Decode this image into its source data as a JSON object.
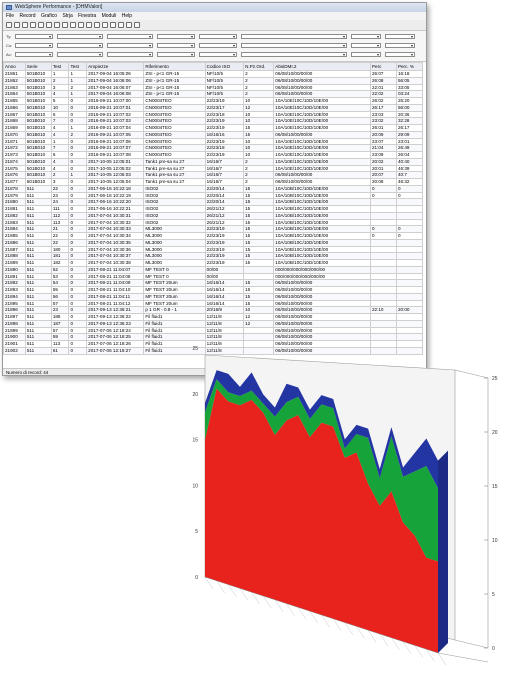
{
  "window": {
    "title": "WebSphere Performance - [DHMValori]",
    "menu": [
      "File",
      "Record",
      "Grafico",
      "Strja",
      "Finestra",
      "Moduli",
      "Help"
    ],
    "toolbar_icons": [
      "new-icon",
      "open-icon",
      "save-icon",
      "print-icon",
      "cut-icon",
      "copy-icon",
      "paste-icon",
      "find-icon",
      "filter-icon",
      "sort-icon",
      "refresh-icon",
      "chart-icon",
      "grid-icon",
      "export-icon",
      "settings-icon",
      "zoom-icon",
      "help-icon"
    ],
    "filter_labels": [
      "Ty:",
      "Co:",
      "Ac:"
    ],
    "status": "Numero di record: 44"
  },
  "table": {
    "columns": [
      "Anno",
      "Serie",
      "Test",
      "Test",
      "Ampiezze",
      "Riferimento",
      "Codice ISO",
      "N.Pz.Ord.",
      "AbsiDMI.2",
      "Perc",
      "Perc. %"
    ],
    "rows": [
      [
        "21861",
        "501B010",
        "1",
        "1",
        "2017-09-04 16:05:06",
        "ZSI - p<1 GR-15",
        "NF/10/5",
        "2",
        "06/08/10/00/00/00",
        "26:07",
        "16:18"
      ],
      [
        "21862",
        "501B010",
        "2",
        "1",
        "2017-09-04 16:06:06",
        "ZSI - p<1 GR-15",
        "NF/10/5",
        "2",
        "06/08/10/00/00/00",
        "26:08",
        "56:05"
      ],
      [
        "21863",
        "501B010",
        "3",
        "2",
        "2017-09-04 16:06:07",
        "ZSI - p<1 GR-15",
        "NF/10/5",
        "2",
        "06/08/10/00/00/00",
        "22:01",
        "33:05"
      ],
      [
        "21864",
        "501B010",
        "4",
        "1",
        "2017-09-04 16:06:08",
        "ZSI - p<1 GR-15",
        "NF/10/5",
        "2",
        "06/08/10/00/00/00",
        "22:02",
        "03:24"
      ],
      [
        "21865",
        "501B010",
        "5",
        "0",
        "2016-09-21 10:07:00",
        "CN0004TEO",
        "22/23/19",
        "10",
        "10A/10E/10C/10D/10E/00",
        "26:02",
        "26:20"
      ],
      [
        "21866",
        "501B010",
        "10",
        "0",
        "2016-09-21 10:07:01",
        "CN0004TEO",
        "22/23/17",
        "12",
        "10A/10E/10C/10D/10E/00",
        "26:17",
        "56:00"
      ],
      [
        "21867",
        "501B010",
        "6",
        "0",
        "2016-09-21 10:07:02",
        "CN0004TEO",
        "22/23/18",
        "10",
        "10A/10E/10C/10D/10E/00",
        "23:03",
        "20:36"
      ],
      [
        "21868",
        "501B010",
        "7",
        "0",
        "2016-09-21 10:07:03",
        "CN0004TEO",
        "22/23/19",
        "10",
        "10A/10E/10C/10D/10E/00",
        "23:02",
        "32:28"
      ],
      [
        "21869",
        "501B010",
        "4",
        "1",
        "2016-09-21 10:07:04",
        "CN0004TEO",
        "22/23/19",
        "15",
        "10A/10E/10C/10D/10E/00",
        "26:01",
        "26:17"
      ],
      [
        "21870",
        "501B010",
        "4",
        "2",
        "2016-09-21 10:07:05",
        "CN0004TEO",
        "16/16/16",
        "15",
        "06/08/10/00/00/00",
        "20:09",
        "29:09"
      ],
      [
        "21871",
        "501B010",
        "1",
        "0",
        "2016-09-21 10:07:06",
        "CN0004TEO",
        "22/23/19",
        "10",
        "10A/10E/10C/10D/10E/00",
        "23:07",
        "23:01"
      ],
      [
        "21872",
        "501B010",
        "7",
        "0",
        "2016-09-21 10:07:07",
        "CN0004TEO",
        "22/23/18",
        "10",
        "10A/10E/10C/10D/10E/00",
        "21:04",
        "26:49"
      ],
      [
        "21873",
        "501B010",
        "6",
        "0",
        "2016-09-21 10:07:08",
        "CN0004TEO",
        "22/23/19",
        "10",
        "10A/10E/10C/10D/10E/00",
        "23:09",
        "26:04"
      ],
      [
        "21874",
        "501B010",
        "4",
        "0",
        "2017-10-05 12:05:01",
        "Tank1 pre-sa su 27",
        "16/16/7",
        "2",
        "10A/10E/10C/10D/10E/00",
        "20:02",
        "40:40"
      ],
      [
        "21875",
        "501B010",
        "4",
        "0",
        "2017-10-05 12:05:02",
        "Tank1 pre-sa su 27",
        "16/16/7",
        "2",
        "10A/10E/10C/10D/10E/00",
        "20:01",
        "46:39"
      ],
      [
        "21876",
        "501B010",
        "2",
        "1",
        "2017-10-05 12:05:03",
        "Tank1 pre-sa su 27",
        "16/16/7",
        "2",
        "06/08/10/00/00/00",
        "20:07",
        "40:7"
      ],
      [
        "21877",
        "501B010",
        "3",
        "0",
        "2017-10-05 12:05:04",
        "Tank1 pre-sa su 27",
        "16/16/7",
        "2",
        "06/08/10/00/00/00",
        "20:08",
        "46:32"
      ],
      [
        "21878",
        "511",
        "22",
        "0",
        "2017-06-16 10:22:18",
        "ISO02",
        "22/20/14",
        "15",
        "10A/10B/10C/10D/10E/00",
        "0",
        "0"
      ],
      [
        "21879",
        "511",
        "23",
        "0",
        "2017-06-16 10:22:19",
        "ISO02",
        "22/20/14",
        "15",
        "10A/10B/10C/10D/10E/00",
        "0",
        "0"
      ],
      [
        "21880",
        "511",
        "24",
        "0",
        "2017-06-16 10:22:20",
        "ISO02",
        "22/20/14",
        "15",
        "10A/10B/10C/10D/10E/00",
        "",
        ""
      ],
      [
        "21881",
        "511",
        "111",
        "0",
        "2017-06-16 10:22:21",
        "ISO02",
        "26/21/12",
        "15",
        "10A/10B/10C/10D/10E/00",
        "",
        ""
      ],
      [
        "21882",
        "511",
        "112",
        "0",
        "2017-07-04 10:30:31",
        "ISO02",
        "26/21/12",
        "15",
        "10A/10B/10C/10D/10E/00",
        "",
        ""
      ],
      [
        "21883",
        "511",
        "113",
        "0",
        "2017-07-04 10:30:32",
        "ISO02",
        "26/21/12",
        "15",
        "10A/10B/10C/10D/10E/00",
        "",
        ""
      ],
      [
        "21884",
        "511",
        "21",
        "0",
        "2017-07-04 10:30:33",
        "ML3000",
        "22/23/19",
        "15",
        "10A/10B/10C/10D/10E/00",
        "0",
        "0"
      ],
      [
        "21885",
        "511",
        "22",
        "0",
        "2017-07-04 10:30:34",
        "ML3000",
        "22/23/19",
        "15",
        "10A/10B/10C/10D/10E/00",
        "0",
        "0"
      ],
      [
        "21886",
        "511",
        "22",
        "0",
        "2017-07-04 10:30:35",
        "ML3000",
        "22/23/19",
        "15",
        "10A/10B/10C/10D/10E/00",
        "",
        ""
      ],
      [
        "21887",
        "511",
        "180",
        "0",
        "2017-07-04 10:30:36",
        "ML3000",
        "22/23/19",
        "15",
        "10A/10B/10C/10D/10E/00",
        "",
        ""
      ],
      [
        "21888",
        "511",
        "181",
        "0",
        "2017-07-04 10:30:37",
        "ML3000",
        "22/23/19",
        "15",
        "10A/10B/10C/10D/10E/00",
        "",
        ""
      ],
      [
        "21889",
        "511",
        "182",
        "0",
        "2017-07-04 10:30:38",
        "ML3000",
        "22/23/19",
        "15",
        "10A/10B/10C/10D/10E/00",
        "",
        ""
      ],
      [
        "21890",
        "511",
        "52",
        "0",
        "2017-08-21 11:04:07",
        "MF TEST 0",
        "00/00",
        "",
        "000/000/000/000/000/00",
        "",
        ""
      ],
      [
        "21891",
        "511",
        "53",
        "0",
        "2017-08-21 11:04:08",
        "MF TEST 0",
        "00/00",
        "",
        "000/000/000/000/000/00",
        "",
        ""
      ],
      [
        "21892",
        "511",
        "54",
        "0",
        "2017-08-21 11:04:09",
        "MF TEST 20um",
        "16/16/14",
        "15",
        "06/08/10/00/00/00",
        "",
        ""
      ],
      [
        "21893",
        "511",
        "55",
        "0",
        "2017-08-21 11:04:10",
        "MF TEST 20um",
        "16/16/14",
        "15",
        "06/08/10/00/00/00",
        "",
        ""
      ],
      [
        "21894",
        "511",
        "56",
        "0",
        "2017-08-21 11:04:11",
        "MF TEST 20um",
        "16/16/14",
        "15",
        "06/08/10/00/00/00",
        "",
        ""
      ],
      [
        "21895",
        "511",
        "57",
        "0",
        "2017-08-21 11:04:12",
        "MF TEST 20um",
        "16/16/14",
        "15",
        "06/08/10/00/00/00",
        "",
        ""
      ],
      [
        "21896",
        "511",
        "23",
        "0",
        "2017-09-13 12:36:21",
        "p 1 GR - 0.8 - 1",
        "20/16/9",
        "10",
        "06/08/10/00/00/00",
        "22:10",
        "20:00"
      ],
      [
        "21897",
        "511",
        "185",
        "0",
        "2017-09-13 12:36:22",
        "Fil fluid1",
        "12/11/8",
        "12",
        "06/08/10/00/00/00",
        "",
        ""
      ],
      [
        "21898",
        "511",
        "187",
        "0",
        "2017-09-13 12:36:23",
        "Fil fluid1",
        "12/11/8",
        "12",
        "06/08/10/00/00/00",
        "",
        ""
      ],
      [
        "21899",
        "511",
        "57",
        "0",
        "2017-07-06 12:18:24",
        "Fil fluid1",
        "12/11/8",
        "",
        "06/08/10/00/00/00",
        "",
        ""
      ],
      [
        "21900",
        "511",
        "59",
        "0",
        "2017-07-06 12:18:25",
        "Fil fluid1",
        "12/11/8",
        "",
        "06/08/10/00/00/00",
        "",
        ""
      ],
      [
        "21901",
        "511",
        "113",
        "0",
        "2017-07-06 12:18:26",
        "Fil fluid1",
        "12/11/8",
        "",
        "06/08/10/00/00/00",
        "",
        ""
      ],
      [
        "21902",
        "511",
        "61",
        "0",
        "2017-07-06 12:18:27",
        "Fil fluid1",
        "12/11/8",
        "",
        "06/08/10/00/00/00",
        "",
        ""
      ]
    ]
  },
  "chart_data": {
    "type": "area",
    "series": [
      {
        "name": "",
        "color": "#e8221c",
        "values": [
          15,
          21,
          20,
          20,
          21,
          20,
          18,
          20,
          21,
          19,
          21,
          21,
          18,
          19,
          16,
          14,
          16,
          13,
          12,
          10,
          10
        ]
      },
      {
        "name": "",
        "color": "#16a33a",
        "values": [
          3,
          1,
          1,
          1,
          1,
          1,
          2,
          2,
          2,
          2,
          2,
          2,
          1,
          2,
          5,
          3,
          6,
          5,
          7,
          10,
          8
        ]
      },
      {
        "name": "",
        "color": "#2334a3",
        "values": [
          1,
          1,
          2,
          1,
          2,
          1,
          1,
          2,
          1,
          1,
          1,
          1,
          1,
          1,
          1,
          1,
          1,
          1,
          2,
          3,
          3
        ]
      }
    ],
    "ylim": [
      0,
      25
    ],
    "ticks": [
      "25",
      "20",
      "15",
      "10",
      "5",
      "0"
    ],
    "colors": {
      "red": "#e8221c",
      "green": "#16a33a",
      "blue": "#2334a3"
    }
  }
}
